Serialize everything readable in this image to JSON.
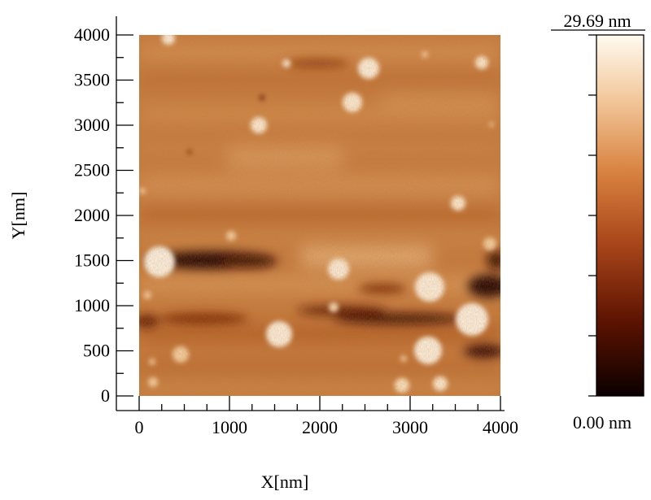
{
  "figure": {
    "type": "AFM topography image",
    "x_axis": {
      "label": "X[nm]",
      "ticks": [
        "0",
        "1000",
        "2000",
        "3000",
        "4000"
      ],
      "range": [
        0,
        4000
      ]
    },
    "y_axis": {
      "label": "Y[nm]",
      "ticks": [
        "0",
        "500",
        "1000",
        "1500",
        "2000",
        "2500",
        "3000",
        "3500",
        "4000"
      ],
      "range": [
        0,
        4000
      ]
    },
    "colorbar": {
      "max_label": "29.69 nm",
      "min_label": "0.00 nm",
      "max_value": 29.69,
      "min_value": 0.0,
      "unit": "nm",
      "colors": [
        "#0b0000",
        "#5a1200",
        "#a8451a",
        "#d8823f",
        "#f2c79a",
        "#fffaf0"
      ]
    },
    "map_colors": {
      "base": "#c77a3e",
      "dark": "#1a0300",
      "bright": "#fff8ec"
    }
  }
}
